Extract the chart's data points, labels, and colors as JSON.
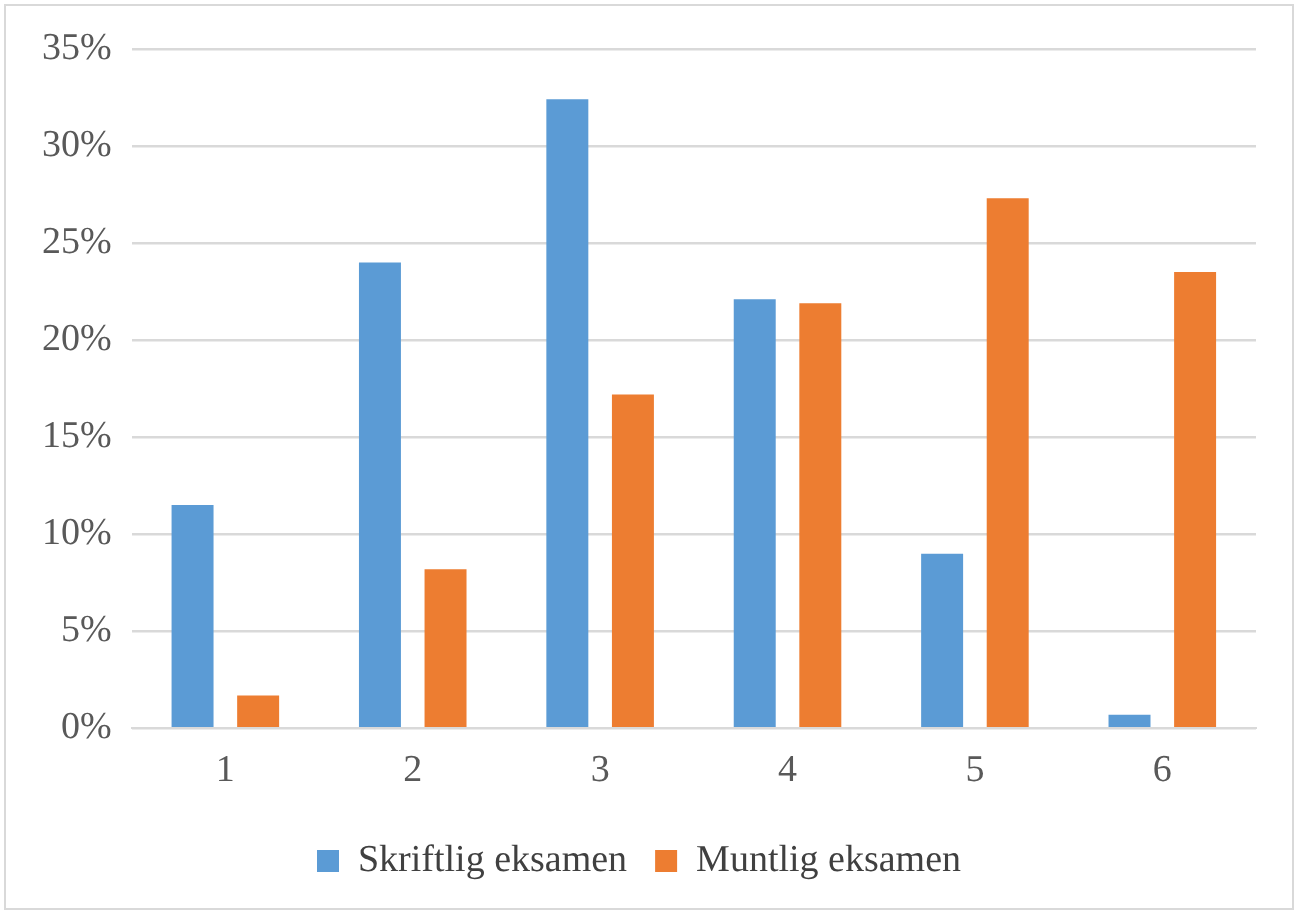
{
  "chart_data": {
    "type": "bar",
    "categories": [
      "1",
      "2",
      "3",
      "4",
      "5",
      "6"
    ],
    "series": [
      {
        "name": "Skriftlig eksamen",
        "color": "#5b9bd5",
        "values": [
          11.5,
          24.0,
          32.4,
          22.1,
          9.0,
          0.7
        ]
      },
      {
        "name": "Muntlig eksamen",
        "color": "#ed7d31",
        "values": [
          1.7,
          8.2,
          17.2,
          21.9,
          27.3,
          23.5
        ]
      }
    ],
    "ylim": [
      0,
      35
    ],
    "yticks": [
      {
        "value": 0,
        "label": "0%"
      },
      {
        "value": 5,
        "label": "5%"
      },
      {
        "value": 10,
        "label": "10%"
      },
      {
        "value": 15,
        "label": "15%"
      },
      {
        "value": 20,
        "label": "20%"
      },
      {
        "value": 25,
        "label": "25%"
      },
      {
        "value": 30,
        "label": "30%"
      },
      {
        "value": 35,
        "label": "35%"
      }
    ],
    "grid": "y",
    "legend": "bottom"
  }
}
